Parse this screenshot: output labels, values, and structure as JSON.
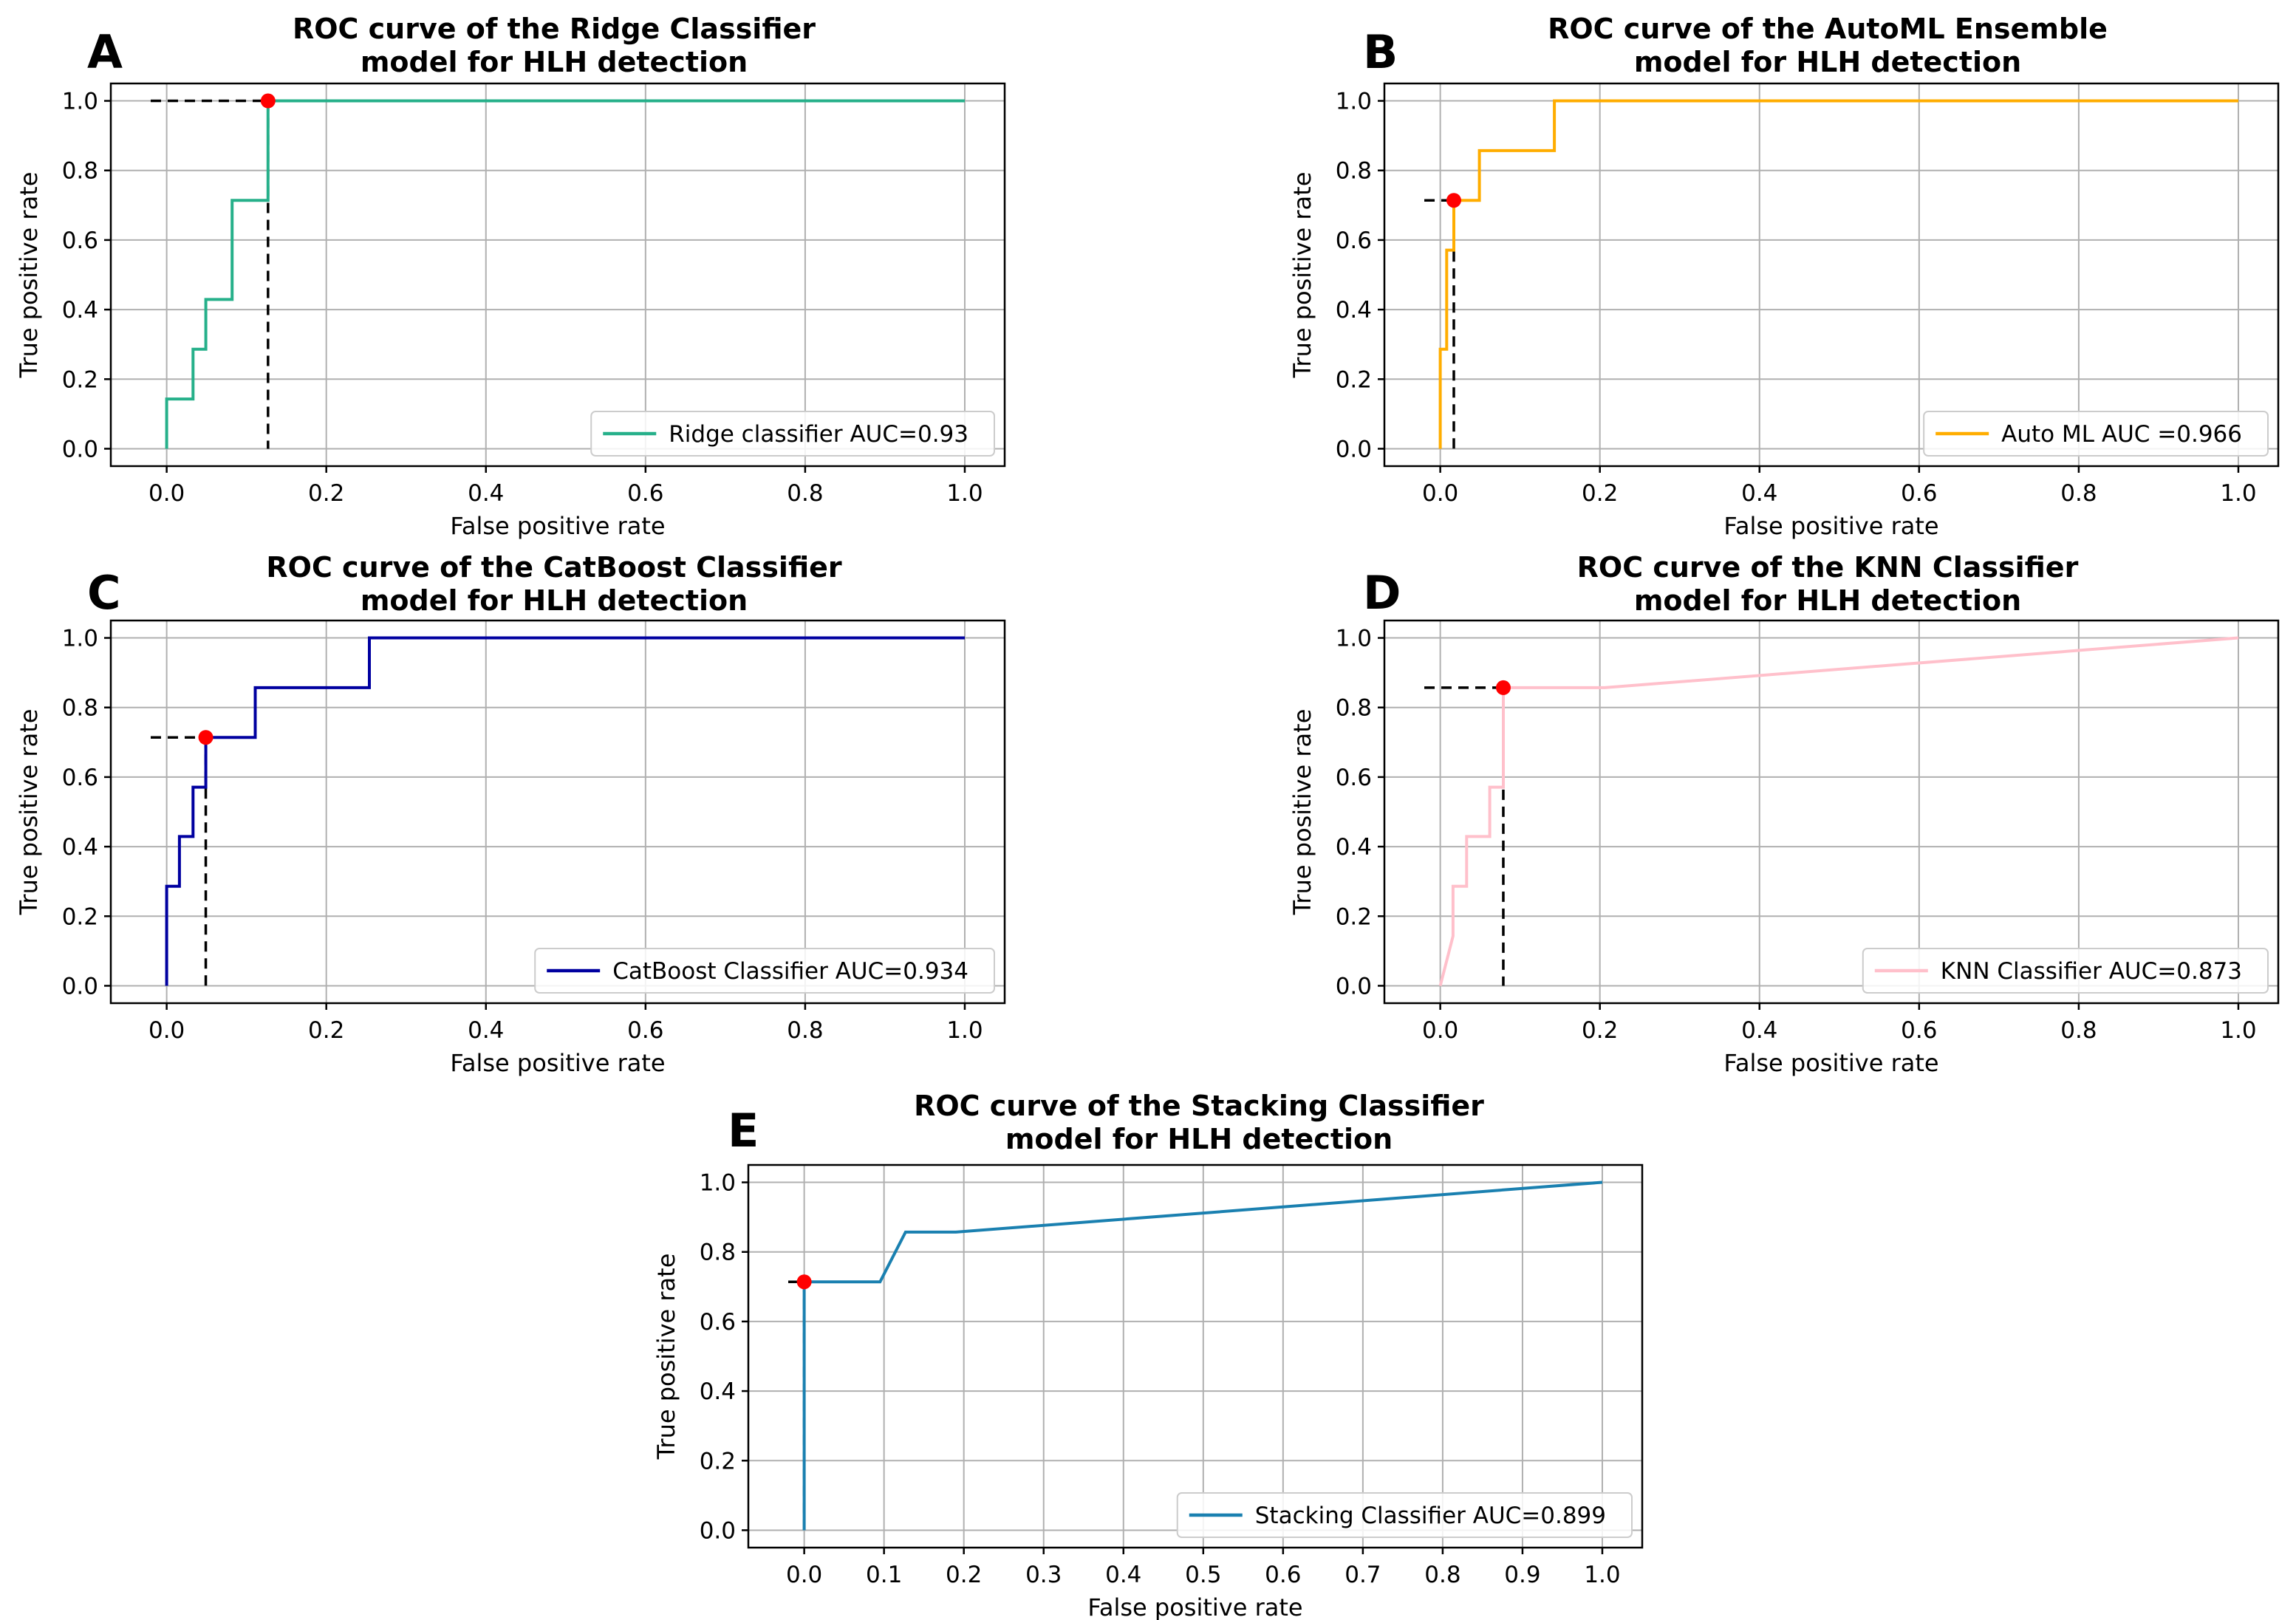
{
  "chart_data": [
    {
      "panel": "A",
      "type": "line",
      "title": "ROC curve of the Ridge Classifier\nmodel for HLH detection",
      "xlabel": "False positive rate",
      "ylabel": "True positive rate",
      "xlim": [
        -0.07,
        1.05
      ],
      "ylim": [
        -0.05,
        1.05
      ],
      "xticks": [
        0.0,
        0.2,
        0.4,
        0.6,
        0.8,
        1.0
      ],
      "xtick_labels": [
        "0.0",
        "0.2",
        "0.4",
        "0.6",
        "0.8",
        "1.0"
      ],
      "yticks": [
        0.0,
        0.2,
        0.4,
        0.6,
        0.8,
        1.0
      ],
      "ytick_labels": [
        "0.0",
        "0.2",
        "0.4",
        "0.6",
        "0.8",
        "1.0"
      ],
      "grid": true,
      "legend_position": "lower-right",
      "series": [
        {
          "name": "Ridge classifier AUC=0.93",
          "color": "#26b08a",
          "x": [
            0,
            0,
            0.033,
            0.033,
            0.049,
            0.049,
            0.082,
            0.082,
            0.127,
            0.127,
            1.0
          ],
          "y": [
            0,
            0.143,
            0.143,
            0.286,
            0.286,
            0.429,
            0.429,
            0.714,
            0.714,
            1.0,
            1.0
          ]
        }
      ],
      "optimal_point": {
        "x": 0.127,
        "y": 1.0,
        "color": "#ff0000"
      },
      "dashed_line_color": "#000000"
    },
    {
      "panel": "B",
      "type": "line",
      "title": "ROC curve of the AutoML Ensemble\nmodel for HLH detection",
      "xlabel": "False positive rate",
      "ylabel": "True positive rate",
      "xlim": [
        -0.07,
        1.05
      ],
      "ylim": [
        -0.05,
        1.05
      ],
      "xticks": [
        0.0,
        0.2,
        0.4,
        0.6,
        0.8,
        1.0
      ],
      "xtick_labels": [
        "0.0",
        "0.2",
        "0.4",
        "0.6",
        "0.8",
        "1.0"
      ],
      "yticks": [
        0.0,
        0.2,
        0.4,
        0.6,
        0.8,
        1.0
      ],
      "ytick_labels": [
        "0.0",
        "0.2",
        "0.4",
        "0.6",
        "0.8",
        "1.0"
      ],
      "grid": true,
      "legend_position": "lower-right",
      "series": [
        {
          "name": "Auto ML AUC =0.966",
          "color": "#ffad00",
          "x": [
            0,
            0,
            0.008,
            0.008,
            0.017,
            0.017,
            0.049,
            0.049,
            0.143,
            0.143,
            1.0
          ],
          "y": [
            0,
            0.286,
            0.286,
            0.571,
            0.571,
            0.714,
            0.714,
            0.857,
            0.857,
            1.0,
            1.0
          ]
        }
      ],
      "optimal_point": {
        "x": 0.017,
        "y": 0.714,
        "color": "#ff0000"
      },
      "dashed_line_color": "#000000"
    },
    {
      "panel": "C",
      "type": "line",
      "title": "ROC curve of the CatBoost Classifier\nmodel for HLH detection",
      "xlabel": "False positive rate",
      "ylabel": "True positive rate",
      "xlim": [
        -0.07,
        1.05
      ],
      "ylim": [
        -0.05,
        1.05
      ],
      "xticks": [
        0.0,
        0.2,
        0.4,
        0.6,
        0.8,
        1.0
      ],
      "xtick_labels": [
        "0.0",
        "0.2",
        "0.4",
        "0.6",
        "0.8",
        "1.0"
      ],
      "yticks": [
        0.0,
        0.2,
        0.4,
        0.6,
        0.8,
        1.0
      ],
      "ytick_labels": [
        "0.0",
        "0.2",
        "0.4",
        "0.6",
        "0.8",
        "1.0"
      ],
      "grid": true,
      "legend_position": "lower-right",
      "series": [
        {
          "name": "CatBoost Classifier AUC=0.934",
          "color": "#0000a0",
          "x": [
            0,
            0,
            0.016,
            0.016,
            0.033,
            0.033,
            0.049,
            0.049,
            0.111,
            0.111,
            0.254,
            0.254,
            1.0
          ],
          "y": [
            0,
            0.286,
            0.286,
            0.429,
            0.429,
            0.571,
            0.571,
            0.714,
            0.714,
            0.857,
            0.857,
            1.0,
            1.0
          ]
        }
      ],
      "optimal_point": {
        "x": 0.049,
        "y": 0.714,
        "color": "#ff0000"
      },
      "dashed_line_color": "#000000"
    },
    {
      "panel": "D",
      "type": "line",
      "title": "ROC curve of the KNN Classifier\nmodel for HLH detection",
      "xlabel": "False positive rate",
      "ylabel": "True positive rate",
      "xlim": [
        -0.07,
        1.05
      ],
      "ylim": [
        -0.05,
        1.05
      ],
      "xticks": [
        0.0,
        0.2,
        0.4,
        0.6,
        0.8,
        1.0
      ],
      "xtick_labels": [
        "0.0",
        "0.2",
        "0.4",
        "0.6",
        "0.8",
        "1.0"
      ],
      "yticks": [
        0.0,
        0.2,
        0.4,
        0.6,
        0.8,
        1.0
      ],
      "ytick_labels": [
        "0.0",
        "0.2",
        "0.4",
        "0.6",
        "0.8",
        "1.0"
      ],
      "grid": true,
      "legend_position": "lower-right",
      "series": [
        {
          "name": "KNN Classifier AUC=0.873",
          "color": "#ffc0cb",
          "x": [
            0,
            0.016,
            0.016,
            0.033,
            0.033,
            0.062,
            0.062,
            0.079,
            0.079,
            0.206,
            1.0
          ],
          "y": [
            0,
            0.143,
            0.286,
            0.286,
            0.429,
            0.429,
            0.571,
            0.571,
            0.857,
            0.857,
            1.0
          ]
        }
      ],
      "optimal_point": {
        "x": 0.079,
        "y": 0.857,
        "color": "#ff0000"
      },
      "dashed_line_color": "#000000"
    },
    {
      "panel": "E",
      "type": "line",
      "title": "ROC curve of the Stacking Classifier\nmodel for HLH detection",
      "xlabel": "False positive rate",
      "ylabel": "True positive rate",
      "xlim": [
        -0.07,
        1.05
      ],
      "ylim": [
        -0.05,
        1.05
      ],
      "xticks": [
        0.0,
        0.1,
        0.2,
        0.3,
        0.4,
        0.5,
        0.6,
        0.7,
        0.8,
        0.9,
        1.0
      ],
      "xtick_labels": [
        "0.0",
        "0.1",
        "0.2",
        "0.3",
        "0.4",
        "0.5",
        "0.6",
        "0.7",
        "0.8",
        "0.9",
        "1.0"
      ],
      "yticks": [
        0.0,
        0.2,
        0.4,
        0.6,
        0.8,
        1.0
      ],
      "ytick_labels": [
        "0.0",
        "0.2",
        "0.4",
        "0.6",
        "0.8",
        "1.0"
      ],
      "grid": true,
      "legend_position": "lower-right",
      "series": [
        {
          "name": "Stacking Classifier AUC=0.899",
          "color": "#1a80b0",
          "x": [
            0,
            0,
            0.095,
            0.127,
            0.19,
            1.0
          ],
          "y": [
            0,
            0.714,
            0.714,
            0.857,
            0.857,
            1.0
          ]
        }
      ],
      "optimal_point": {
        "x": 0.0,
        "y": 0.714,
        "color": "#ff0000"
      },
      "dashed_line_color": "#000000"
    }
  ]
}
